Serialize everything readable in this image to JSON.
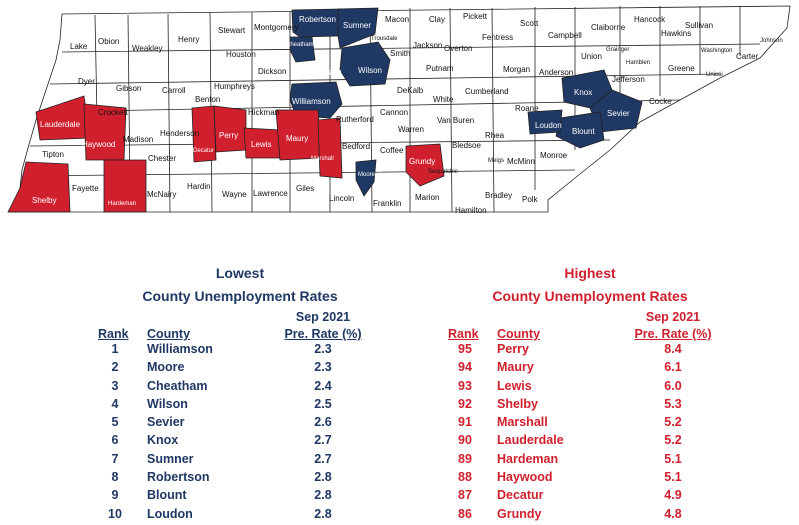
{
  "colors": {
    "low": "#1f3864",
    "high": "#d0202e",
    "neutral": "#ffffff",
    "border": "#222222"
  },
  "map": {
    "counties": {
      "lake": "Lake",
      "obion": "Obion",
      "weakley": "Weakley",
      "henry": "Henry",
      "stewart": "Stewart",
      "montgomery": "Montgomery",
      "robertson": "Robertson",
      "sumner": "Sumner",
      "macon": "Macon",
      "clay": "Clay",
      "pickett": "Pickett",
      "scott": "Scott",
      "hancock": "Hancock",
      "sullivan": "Sullivan",
      "johnson": "Johnson",
      "dyer": "Dyer",
      "gibson": "Gibson",
      "carroll": "Carroll",
      "benton": "Benton",
      "houston": "Houston",
      "cheatham": "Cheatham",
      "trousdale": "Trousdale",
      "smith": "Smith",
      "jackson": "Jackson",
      "overton": "Overton",
      "fentress": "Fentress",
      "campbell": "Campbell",
      "claiborne": "Claiborne",
      "hawkins": "Hawkins",
      "washington": "Washington",
      "carter": "Carter",
      "dickson": "Dickson",
      "davidson": "Davidson",
      "wilson": "Wilson",
      "putnam": "Putnam",
      "morgan": "Morgan",
      "union": "Union",
      "grainger": "Grainger",
      "hamblen": "Hamblen",
      "greene": "Greene",
      "unicoi": "Unicoi",
      "humphreys": "Humphreys",
      "williamson": "Williamson",
      "dekalb": "DeKalb",
      "anderson": "Anderson",
      "jefferson": "Jefferson",
      "knox": "Knox",
      "cocke": "Cocke",
      "lauderdale": "Lauderdale",
      "crockett": "Crockett",
      "haywood": "Haywood",
      "madison": "Madison",
      "henderson": "Henderson",
      "decatur": "Decatur",
      "perry": "Perry",
      "hickman": "Hickman",
      "lewis": "Lewis",
      "maury": "Maury",
      "rutherford": "Rutherford",
      "cannon": "Cannon",
      "white": "White",
      "cumberland": "Cumberland",
      "roane": "Roane",
      "loudon": "Loudon",
      "blount": "Blount",
      "sevier": "Sevier",
      "warren": "Warren",
      "vanburen": "Van Buren",
      "rhea": "Rhea",
      "tipton": "Tipton",
      "chester": "Chester",
      "marshall": "Marshall",
      "bedford": "Bedford",
      "coffee": "Coffee",
      "bledsoe": "Bledsoe",
      "meigs": "Meigs",
      "mcminn": "McMinn",
      "monroe": "Monroe",
      "grundy": "Grundy",
      "sequatchie": "Sequatchie",
      "moore": "Moore",
      "shelby": "Shelby",
      "fayette": "Fayette",
      "hardeman": "Hardeman",
      "mcnairy": "McNairy",
      "hardin": "Hardin",
      "wayne": "Wayne",
      "lawrence": "Lawrence",
      "giles": "Giles",
      "lincoln": "Lincoln",
      "franklin": "Franklin",
      "marion": "Marion",
      "hamilton": "Hamilton",
      "bradley": "Bradley",
      "polk": "Polk"
    }
  },
  "lowest": {
    "title_line1": "Lowest",
    "title_line2": "County Unemployment Rates",
    "period": "Sep 2021",
    "col_rank": "Rank",
    "col_county": "County",
    "col_rate": "Pre. Rate (%)",
    "rows": [
      {
        "rank": "1",
        "county": "Williamson",
        "rate": "2.3"
      },
      {
        "rank": "2",
        "county": "Moore",
        "rate": "2.3"
      },
      {
        "rank": "3",
        "county": "Cheatham",
        "rate": "2.4"
      },
      {
        "rank": "4",
        "county": "Wilson",
        "rate": "2.5"
      },
      {
        "rank": "5",
        "county": "Sevier",
        "rate": "2.6"
      },
      {
        "rank": "6",
        "county": "Knox",
        "rate": "2.7"
      },
      {
        "rank": "7",
        "county": "Sumner",
        "rate": "2.7"
      },
      {
        "rank": "8",
        "county": "Robertson",
        "rate": "2.8"
      },
      {
        "rank": "9",
        "county": "Blount",
        "rate": "2.8"
      },
      {
        "rank": "10",
        "county": "Loudon",
        "rate": "2.8"
      }
    ]
  },
  "highest": {
    "title_line1": "Highest",
    "title_line2": "County Unemployment Rates",
    "period": "Sep 2021",
    "col_rank": "Rank",
    "col_county": "County",
    "col_rate": "Pre. Rate (%)",
    "rows": [
      {
        "rank": "95",
        "county": "Perry",
        "rate": "8.4"
      },
      {
        "rank": "94",
        "county": "Maury",
        "rate": "6.1"
      },
      {
        "rank": "93",
        "county": "Lewis",
        "rate": "6.0"
      },
      {
        "rank": "92",
        "county": "Shelby",
        "rate": "5.3"
      },
      {
        "rank": "91",
        "county": "Marshall",
        "rate": "5.2"
      },
      {
        "rank": "90",
        "county": "Lauderdale",
        "rate": "5.2"
      },
      {
        "rank": "89",
        "county": "Hardeman",
        "rate": "5.1"
      },
      {
        "rank": "88",
        "county": "Haywood",
        "rate": "5.1"
      },
      {
        "rank": "87",
        "county": "Decatur",
        "rate": "4.9"
      },
      {
        "rank": "86",
        "county": "Grundy",
        "rate": "4.8"
      }
    ]
  }
}
